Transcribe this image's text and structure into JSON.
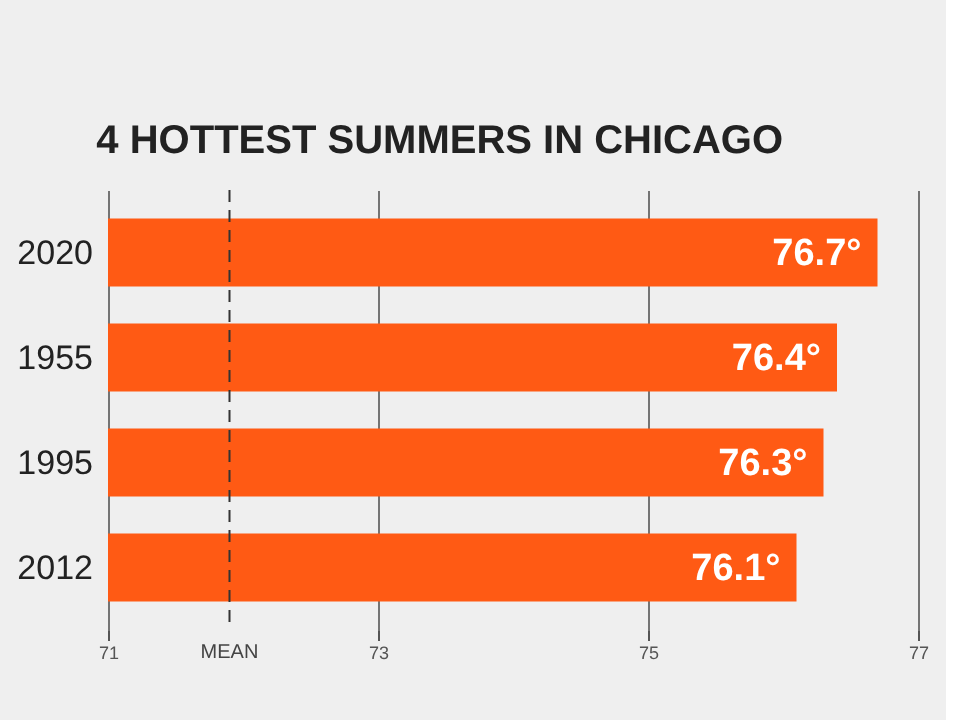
{
  "chart_data": {
    "type": "bar",
    "orientation": "horizontal",
    "title": "4 HOTTEST SUMMERS IN CHICAGO",
    "categories": [
      "2020",
      "1955",
      "1995",
      "2012"
    ],
    "values": [
      76.7,
      76.4,
      76.3,
      76.1
    ],
    "value_labels": [
      "76.7°",
      "76.4°",
      "76.3°",
      "76.1°"
    ],
    "color": "#ff5a14",
    "xlim": [
      71,
      77
    ],
    "xticks": [
      71,
      73,
      75,
      77
    ],
    "grid": "x",
    "ref_lines": [
      {
        "axis": "x",
        "value": 71.9,
        "label": "MEAN",
        "line_style": "dashed"
      }
    ]
  }
}
